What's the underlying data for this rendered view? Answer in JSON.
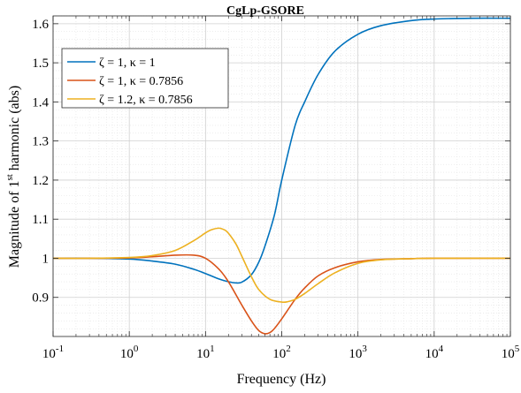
{
  "chart_data": {
    "type": "line",
    "title": "CgLp-GSORE",
    "xlabel": "Frequency (Hz)",
    "ylabel_main": "Magnitude of 1",
    "ylabel_sup": "st",
    "ylabel_rest": " harmonic  (abs)",
    "xscale": "log",
    "xlim": [
      0.1,
      100000
    ],
    "ylim": [
      0.8,
      1.62
    ],
    "grid": true,
    "legend_position": "top-left",
    "x_ticks": [
      {
        "value": 0.1,
        "base": "10",
        "exp": "-1"
      },
      {
        "value": 1,
        "base": "10",
        "exp": "0"
      },
      {
        "value": 10,
        "base": "10",
        "exp": "1"
      },
      {
        "value": 100,
        "base": "10",
        "exp": "2"
      },
      {
        "value": 1000,
        "base": "10",
        "exp": "3"
      },
      {
        "value": 10000,
        "base": "10",
        "exp": "4"
      },
      {
        "value": 100000,
        "base": "10",
        "exp": "5"
      }
    ],
    "y_ticks": [
      {
        "value": 0.9,
        "label": "0.9"
      },
      {
        "value": 1.0,
        "label": "1"
      },
      {
        "value": 1.1,
        "label": "1.1"
      },
      {
        "value": 1.2,
        "label": "1.2"
      },
      {
        "value": 1.3,
        "label": "1.3"
      },
      {
        "value": 1.4,
        "label": "1.4"
      },
      {
        "value": 1.5,
        "label": "1.5"
      },
      {
        "value": 1.6,
        "label": "1.6"
      }
    ],
    "series": [
      {
        "name": "ζ = 1,     κ = 1",
        "color": "#0072BD",
        "x": [
          0.1,
          0.3,
          1,
          2,
          4,
          7,
          10,
          15,
          20,
          25,
          30,
          40,
          50,
          60,
          80,
          100,
          150,
          200,
          300,
          500,
          1000,
          2000,
          5000,
          10000,
          30000,
          100000
        ],
        "y": [
          1.0,
          1.0,
          0.998,
          0.993,
          0.985,
          0.972,
          0.961,
          0.947,
          0.94,
          0.937,
          0.939,
          0.958,
          0.99,
          1.03,
          1.11,
          1.2,
          1.34,
          1.4,
          1.47,
          1.53,
          1.573,
          1.595,
          1.608,
          1.612,
          1.614,
          1.614
        ]
      },
      {
        "name": "ζ = 1,     κ = 0.7856",
        "color": "#D95319",
        "x": [
          0.1,
          0.3,
          1,
          2,
          4,
          7,
          10,
          15,
          20,
          30,
          40,
          50,
          60,
          70,
          80,
          100,
          150,
          200,
          300,
          500,
          1000,
          2000,
          5000,
          10000,
          100000
        ],
        "y": [
          1.0,
          1.0,
          1.001,
          1.004,
          1.008,
          1.008,
          1.0,
          0.972,
          0.94,
          0.88,
          0.84,
          0.815,
          0.807,
          0.81,
          0.82,
          0.845,
          0.895,
          0.924,
          0.955,
          0.976,
          0.991,
          0.997,
          0.999,
          1.0,
          1.0
        ]
      },
      {
        "name": "ζ = 1.2,  κ = 0.7856",
        "color": "#EDB120",
        "x": [
          0.1,
          0.3,
          1,
          2,
          4,
          7,
          10,
          12,
          15,
          18,
          20,
          25,
          30,
          40,
          50,
          70,
          100,
          120,
          150,
          200,
          300,
          500,
          1000,
          2000,
          5000,
          10000,
          100000
        ],
        "y": [
          1.0,
          1.0,
          1.002,
          1.007,
          1.02,
          1.045,
          1.065,
          1.073,
          1.077,
          1.072,
          1.064,
          1.037,
          1.005,
          0.953,
          0.92,
          0.895,
          0.888,
          0.889,
          0.895,
          0.91,
          0.935,
          0.963,
          0.987,
          0.996,
          0.999,
          1.0,
          1.0
        ]
      }
    ]
  }
}
